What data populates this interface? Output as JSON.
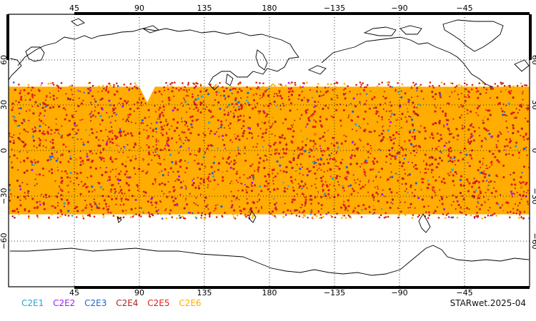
{
  "map": {
    "lon_ticks_top": [
      "45",
      "90",
      "135",
      "180",
      "−135",
      "−90",
      "−45"
    ],
    "lon_ticks_bottom": [
      "45",
      "90",
      "135",
      "180",
      "−135",
      "−90",
      "−45"
    ],
    "lat_ticks_left": [
      "60",
      "30",
      "0",
      "−30",
      "−60"
    ],
    "lat_ticks_right": [
      "60",
      "30",
      "0",
      "−30",
      "−60"
    ],
    "lon_range": [
      0,
      360
    ],
    "lat_range": [
      -90,
      90
    ],
    "data_lat_band": [
      -45,
      45
    ],
    "grid": "dotted",
    "colors": {
      "C2E1": "#29a3d6",
      "C2E2": "#a020f0",
      "C2E3": "#1e64d0",
      "C2E4": "#b22222",
      "C2E5": "#e0201a",
      "C2E6": "#ffad00"
    }
  },
  "legend": {
    "items": [
      {
        "label": "C2E1",
        "color": "#29a3d6"
      },
      {
        "label": "C2E2",
        "color": "#a020f0"
      },
      {
        "label": "C2E3",
        "color": "#1e64d0"
      },
      {
        "label": "C2E4",
        "color": "#b22222"
      },
      {
        "label": "C2E5",
        "color": "#e0201a"
      },
      {
        "label": "C2E6",
        "color": "#ffad00"
      }
    ]
  },
  "caption": "STARwet.2025-04"
}
